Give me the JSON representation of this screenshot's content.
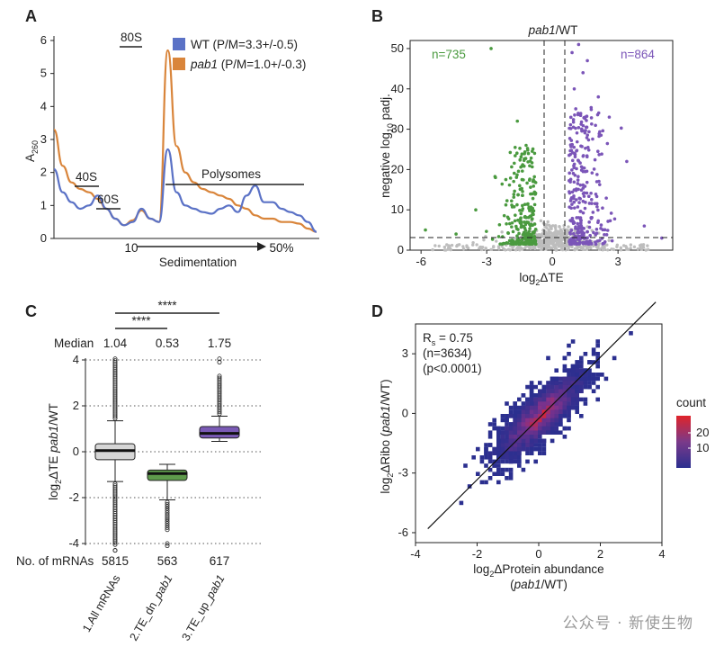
{
  "panels": {
    "A": {
      "letter": "A",
      "ylabel": "A",
      "ylabel_sub": "260",
      "xlabel": "Sedimentation",
      "x_start": "10",
      "x_end": "50%",
      "peaks": [
        "40S",
        "60S",
        "80S",
        "Polysomes"
      ],
      "legend": [
        {
          "name": "WT",
          "stat": " (P/M=3.3+/-0.5)",
          "color": "#5b72c6"
        },
        {
          "name": "pab1",
          "stat": " (P/M=1.0+/-0.3)",
          "color": "#d9853b"
        }
      ],
      "yticks": [
        "0",
        "1",
        "2",
        "3",
        "4",
        "5",
        "6"
      ]
    },
    "B": {
      "letter": "B",
      "title_italic": "pab1",
      "title_rest": "/WT",
      "n_down": "n=735",
      "n_up": "n=864",
      "ylabel_pre": "negative log",
      "ylabel_sub": "10",
      "ylabel_post": " padj.",
      "xlabel_pre": "log",
      "xlabel_sub": "2",
      "xlabel_post": "ΔTE",
      "xticks": [
        "-6",
        "-3",
        "0",
        "3"
      ],
      "yticks": [
        "0",
        "10",
        "20",
        "30",
        "40",
        "50"
      ],
      "colors": {
        "down": "#4a9a3f",
        "up": "#7b55b8",
        "ns": "#bdbdbd"
      }
    },
    "C": {
      "letter": "C",
      "ylabel_pre": "log",
      "ylabel_sub": "2",
      "ylabel_mid": "ΔTE ",
      "ylabel_italic": "pab1",
      "ylabel_post": "/WT",
      "median_label": "Median",
      "medians": [
        "1.04",
        "0.53",
        "1.75"
      ],
      "counts_label": "No. of mRNAs",
      "counts": [
        "5815",
        "563",
        "617"
      ],
      "categories": [
        {
          "pre": "1.All mRNAs",
          "italic": ""
        },
        {
          "pre": "2.TE_dn_",
          "italic": "pab1"
        },
        {
          "pre": "3.TE_up_",
          "italic": "pab1"
        }
      ],
      "sig1": "****",
      "sig2": "****",
      "yticks": [
        "-4",
        "-2",
        "0",
        "2",
        "4"
      ],
      "box_colors": [
        "#d6d6d6",
        "#5e9a4b",
        "#7a5ab5"
      ]
    },
    "D": {
      "letter": "D",
      "stat_r": "R",
      "stat_r_sub": "s",
      "stat_r_val": " = 0.75",
      "stat_n": "(n=3634)",
      "stat_p": "(p<0.0001)",
      "ylabel_pre": "log",
      "ylabel_sub": "2",
      "ylabel_mid": "ΔRibo (",
      "ylabel_italic": "pab1",
      "ylabel_post": "/WT)",
      "xlabel_pre": "log",
      "xlabel_sub": "2",
      "xlabel_post": "ΔProtein abundance",
      "xlabel2_pre": "(",
      "xlabel2_italic": "pab1",
      "xlabel2_post": "/WT)",
      "legend_title": "count",
      "legend_ticks": [
        "20",
        "10"
      ],
      "xticks": [
        "-4",
        "-2",
        "0",
        "2",
        "4"
      ],
      "yticks": [
        "3",
        "0",
        "-3",
        "-6"
      ]
    }
  },
  "watermark": "公众号 · 新使生物",
  "chart_data": [
    {
      "type": "line",
      "title": "",
      "xlabel": "Sedimentation",
      "ylabel": "A260",
      "ylim": [
        0,
        6
      ],
      "series": [
        {
          "name": "WT (P/M=3.3+/-0.5)",
          "values": [
            2.1,
            1.4,
            1.1,
            0.9,
            1.0,
            1.3,
            0.9,
            0.6,
            0.4,
            0.5,
            0.9,
            0.6,
            0.5,
            2.7,
            1.4,
            1.0,
            0.9,
            0.8,
            0.75,
            0.9,
            1.0,
            0.8,
            1.3,
            1.6,
            1.1,
            1.1,
            0.9,
            0.8,
            0.7,
            0.5,
            0.2
          ]
        },
        {
          "name": "pab1 (P/M=1.0+/-0.3)",
          "values": [
            3.3,
            2.2,
            1.7,
            1.5,
            1.4,
            1.2,
            0.9,
            0.6,
            0.4,
            0.55,
            0.85,
            0.6,
            0.5,
            5.7,
            2.8,
            2.0,
            1.7,
            1.5,
            1.4,
            1.3,
            1.2,
            1.0,
            0.9,
            0.7,
            0.6,
            0.6,
            0.5,
            0.5,
            0.45,
            0.3,
            0.2
          ]
        }
      ]
    },
    {
      "type": "scatter",
      "title": "pab1/WT",
      "xlabel": "log2ΔTE",
      "ylabel": "negative log10 padj.",
      "xlim": [
        -6.5,
        5.5
      ],
      "ylim": [
        0,
        52
      ],
      "thresholds": {
        "x": [
          -0.58,
          0.58
        ],
        "y": 1.3
      },
      "groups": [
        {
          "name": "down",
          "count": 735
        },
        {
          "name": "up",
          "count": 864
        }
      ]
    },
    {
      "type": "box",
      "ylabel": "log2ΔTE pab1/WT",
      "ylim": [
        -4,
        4
      ],
      "categories": [
        "1.All mRNAs",
        "2.TE_dn_pab1",
        "3.TE_up_pab1"
      ],
      "median_labels": [
        1.04,
        0.53,
        1.75
      ],
      "counts": [
        5815,
        563,
        617
      ],
      "boxes": [
        {
          "q1": -0.35,
          "median": 0.05,
          "q3": 0.35,
          "whisker_low": -1.3,
          "whisker_high": 1.35
        },
        {
          "q1": -1.25,
          "median": -0.95,
          "q3": -0.8,
          "whisker_low": -2.1,
          "whisker_high": -0.55
        },
        {
          "q1": 0.6,
          "median": 0.8,
          "q3": 1.1,
          "whisker_low": 0.45,
          "whisker_high": 1.55
        }
      ]
    },
    {
      "type": "heatmap",
      "xlabel": "log2ΔProtein abundance (pab1/WT)",
      "ylabel": "log2ΔRibo (pab1/WT)",
      "xlim": [
        -4,
        4
      ],
      "ylim": [
        -6.5,
        4.5
      ],
      "stats": {
        "Rs": 0.75,
        "n": 3634,
        "p": "<0.0001"
      },
      "fit_line": {
        "x1": -3.6,
        "y1": -5.8,
        "x2": 3.8,
        "y2": 5.6
      },
      "colorbar": {
        "title": "count",
        "ticks": [
          20,
          10
        ]
      }
    }
  ]
}
